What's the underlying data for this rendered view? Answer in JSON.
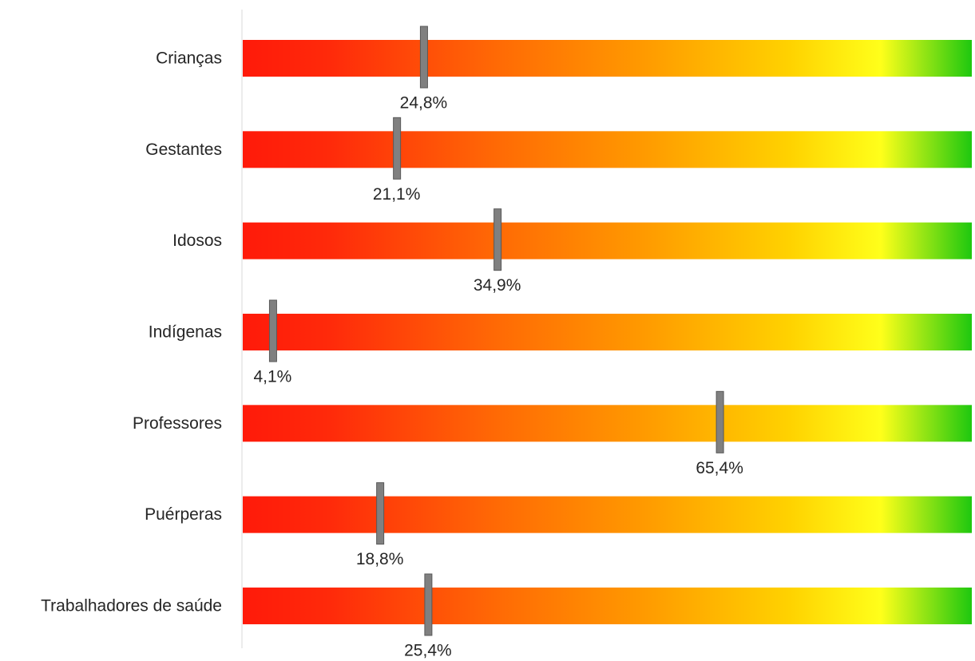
{
  "chart_data": {
    "type": "bar",
    "orientation": "horizontal",
    "style": "gauge bars with red-to-green gradient and marker",
    "categories": [
      "Crianças",
      "Gestantes",
      "Idosos",
      "Indígenas",
      "Professores",
      "Puérperas",
      "Trabalhadores de saúde"
    ],
    "values": [
      24.8,
      21.1,
      34.9,
      4.1,
      65.4,
      18.8,
      25.4
    ],
    "value_labels": [
      "24,8%",
      "21,1%",
      "34,9%",
      "4,1%",
      "65,4%",
      "18,8%",
      "25,4%"
    ],
    "xlim": [
      0,
      100
    ],
    "unit": "%",
    "title": "",
    "xlabel": "",
    "ylabel": "",
    "grid": false,
    "legend": "none",
    "colors": {
      "gradient": [
        "#ff1a0a",
        "#ff5a0a",
        "#ff8c00",
        "#ffc200",
        "#ffe600",
        "#ffff1a",
        "#1ec80f"
      ],
      "marker": "#808080",
      "marker_stroke": "#595959",
      "axis": "#d9d9d9",
      "text": "#262626"
    }
  }
}
